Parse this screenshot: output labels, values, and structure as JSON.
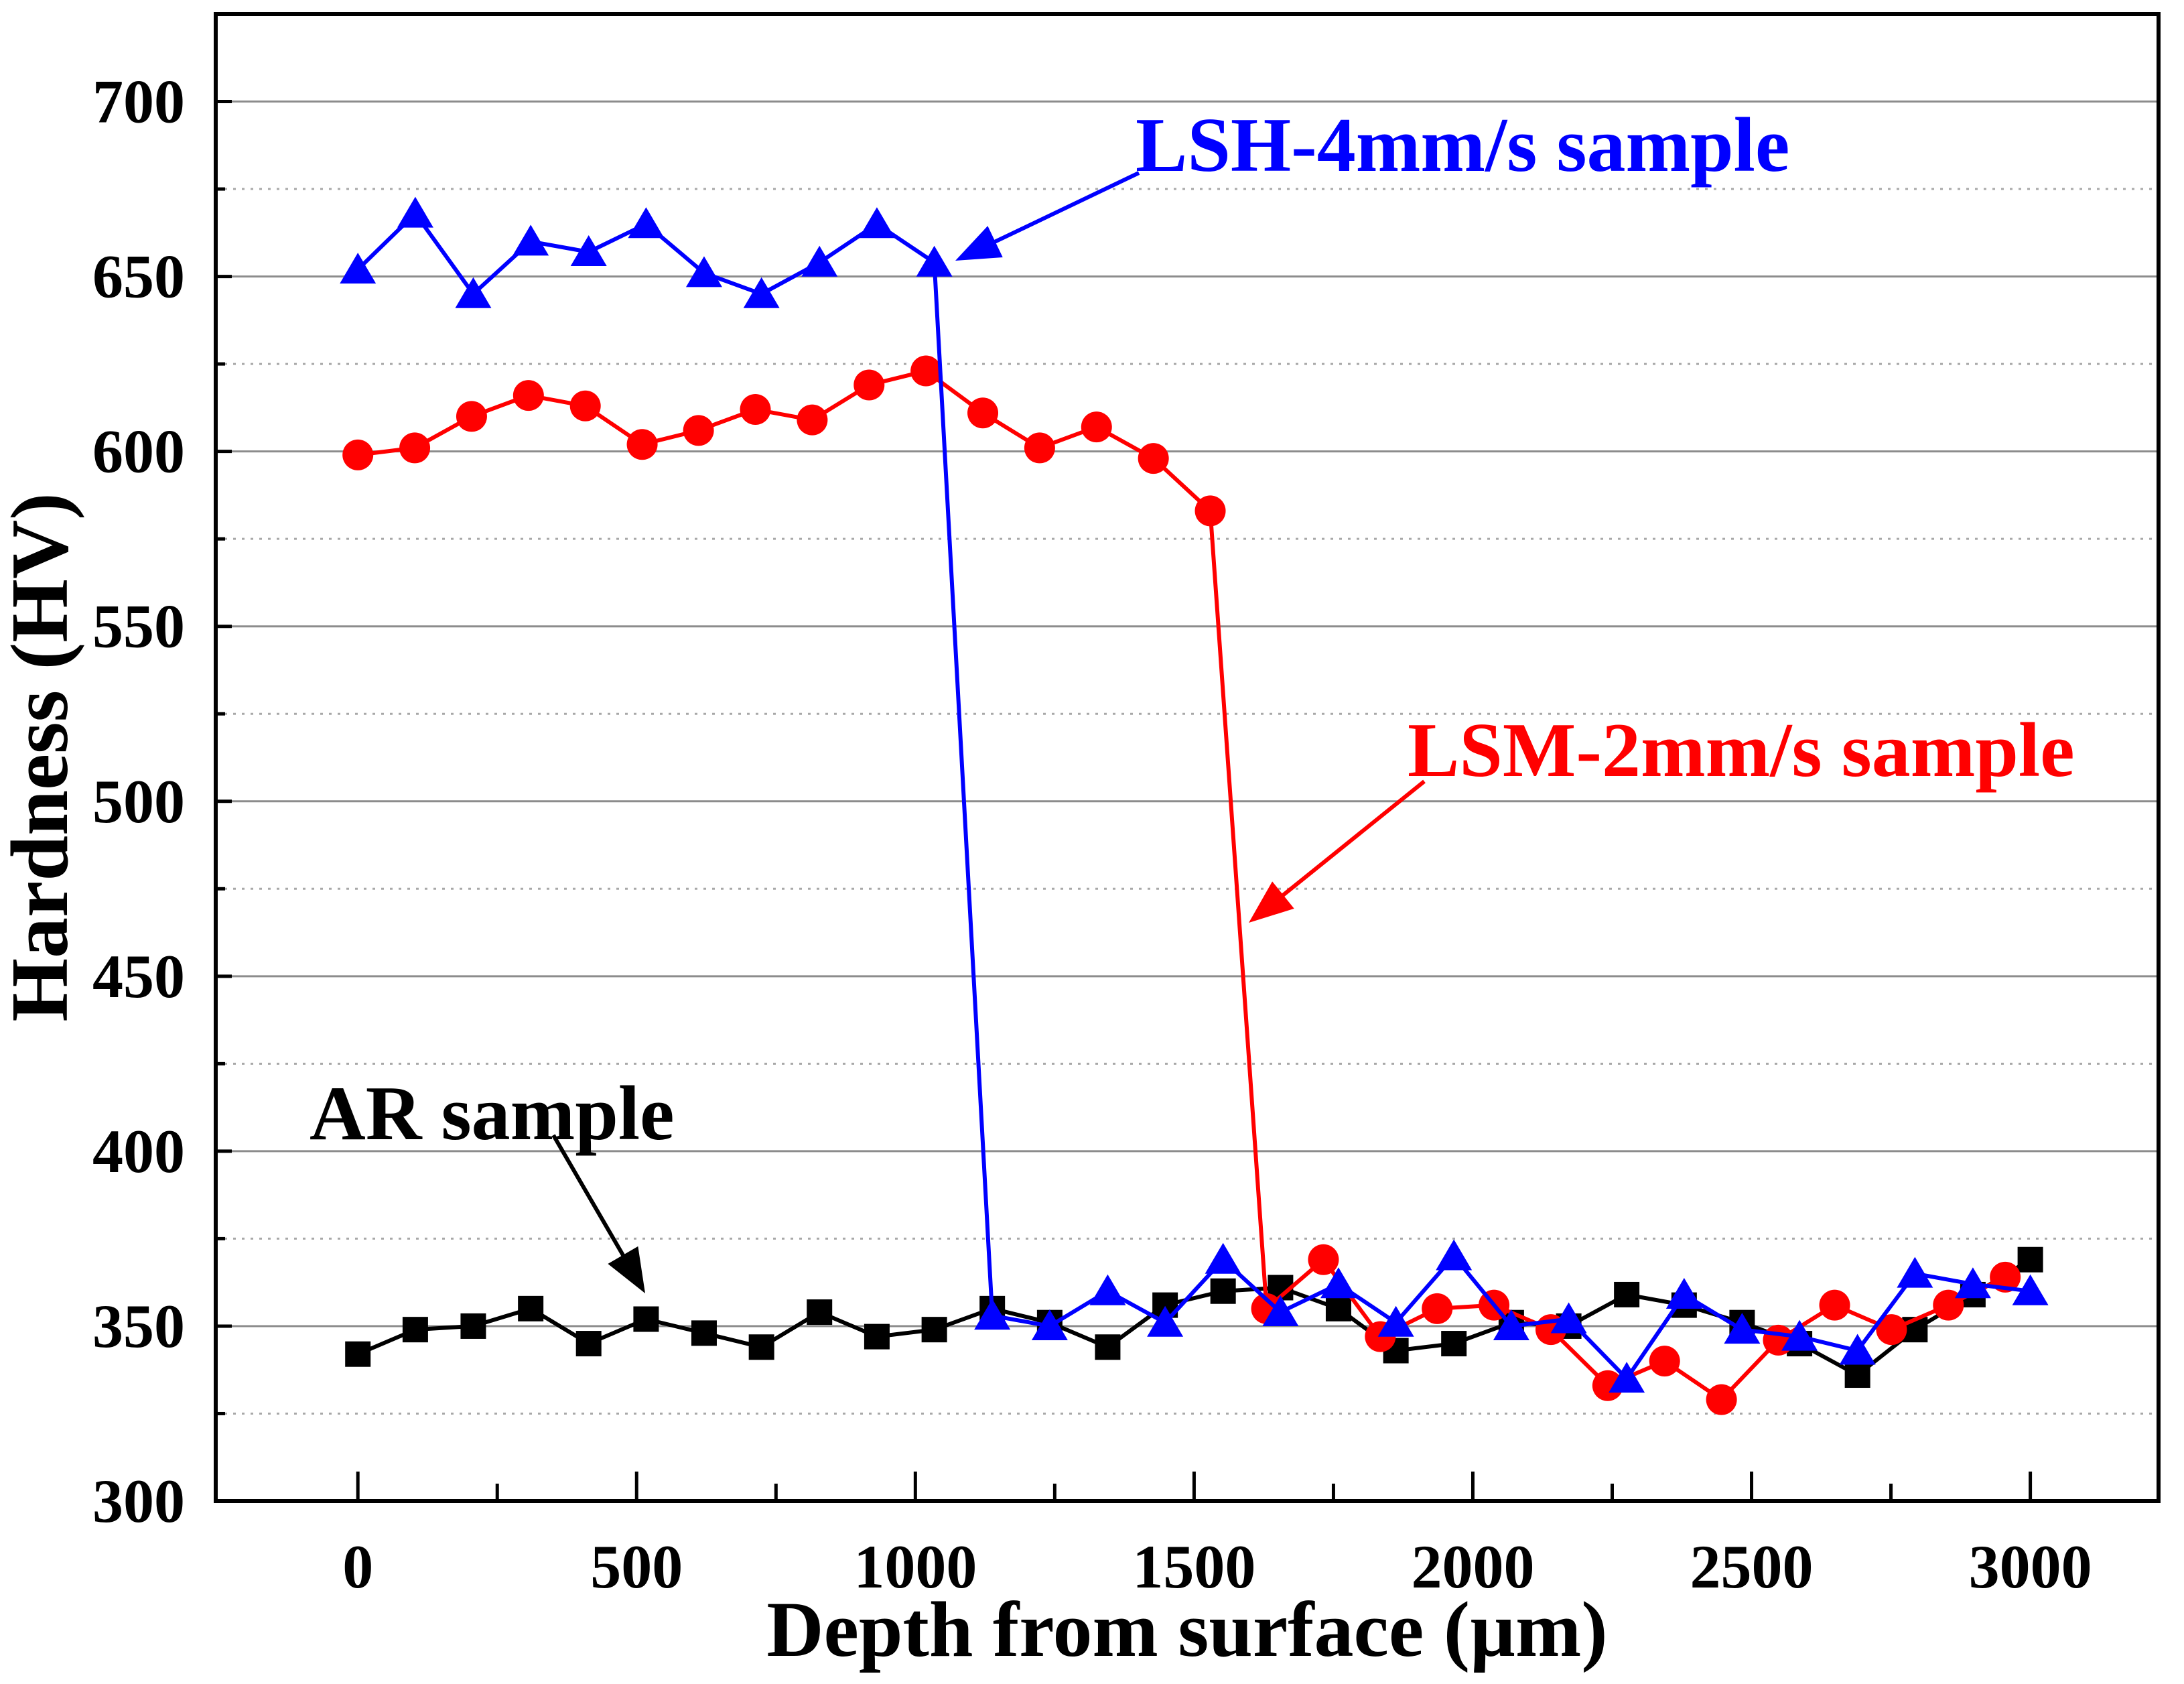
{
  "chart_data": {
    "type": "line",
    "xlabel": "Depth from surface (µm)",
    "ylabel": "Hardness (HV)",
    "xlim": [
      -255,
      3230
    ],
    "ylim": [
      300,
      725
    ],
    "xticks": [
      0,
      500,
      1000,
      1500,
      2000,
      2500,
      3000
    ],
    "x_minor_ticks": [
      250,
      750,
      1250,
      1750,
      2250,
      2750
    ],
    "yticks": [
      300,
      350,
      400,
      450,
      500,
      550,
      600,
      650,
      700
    ],
    "y_minor_ticks": [
      325,
      375,
      425,
      475,
      525,
      575,
      625,
      675
    ],
    "grid": {
      "y_major": true,
      "y_minor": true,
      "x": false
    },
    "legend": false,
    "series": [
      {
        "name": "AR sample",
        "color": "#000000",
        "marker": "square",
        "x": [
          0,
          103,
          207,
          310,
          414,
          517,
          621,
          724,
          828,
          931,
          1034,
          1138,
          1241,
          1345,
          1448,
          1552,
          1655,
          1759,
          1862,
          1966,
          2069,
          2172,
          2276,
          2379,
          2483,
          2586,
          2690,
          2793,
          2897,
          3000
        ],
        "y": [
          342,
          349,
          350,
          355,
          345,
          352,
          348,
          344,
          354,
          347,
          349,
          355,
          351,
          344,
          356,
          360,
          361,
          355,
          343,
          345,
          351,
          350,
          359,
          356,
          351,
          345,
          336,
          349,
          359,
          369
        ]
      },
      {
        "name": "LSM-2mm/s sample",
        "color": "#ff0000",
        "marker": "circle",
        "x": [
          0,
          102,
          204,
          306,
          408,
          510,
          611,
          713,
          815,
          917,
          1019,
          1121,
          1223,
          1325,
          1427,
          1529,
          1630,
          1732,
          1834,
          1936,
          2038,
          2140,
          2242,
          2344,
          2446,
          2548,
          2649,
          2751,
          2853,
          2955
        ],
        "y": [
          599,
          601,
          610,
          616,
          613,
          602,
          606,
          612,
          609,
          619,
          623,
          611,
          601,
          607,
          598,
          583,
          355,
          369,
          347,
          355,
          356,
          349,
          333,
          340,
          329,
          346,
          356,
          349,
          356,
          364
        ]
      },
      {
        "name": "LSH-4mm/s sample",
        "color": "#0000ff",
        "marker": "triangle",
        "x": [
          0,
          103,
          207,
          310,
          414,
          517,
          621,
          724,
          828,
          931,
          1034,
          1138,
          1241,
          1345,
          1448,
          1552,
          1655,
          1759,
          1862,
          1966,
          2069,
          2172,
          2276,
          2379,
          2483,
          2586,
          2690,
          2793,
          2897,
          3000
        ],
        "y": [
          652,
          668,
          645,
          660,
          657,
          665,
          651,
          645,
          654,
          665,
          654,
          353,
          350,
          360,
          351,
          369,
          354,
          362,
          351,
          370,
          350,
          352,
          335,
          359,
          349,
          347,
          343,
          365,
          362,
          360
        ]
      }
    ]
  },
  "colors": {
    "background": "#ffffff",
    "axis": "#000000",
    "grid_major": "#8c8c8c",
    "grid_minor": "#a8a8a8"
  }
}
